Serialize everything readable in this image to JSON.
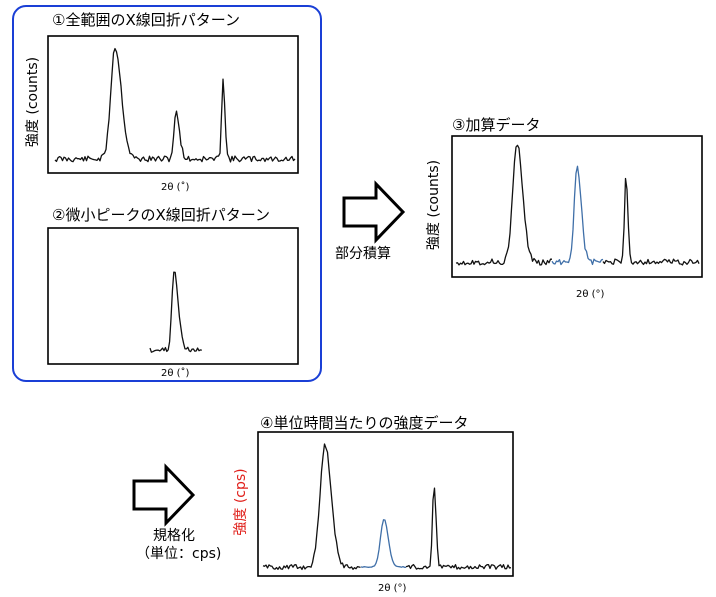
{
  "panel1": {
    "title": "①全範囲のX線回折パターン",
    "ylabel": "強度 (counts)",
    "xlabel": "2θ (˚)"
  },
  "panel2": {
    "title": "②微小ピークのX線回折パターン",
    "xlabel": "2θ (˚)"
  },
  "panel3": {
    "title": "③加算データ",
    "ylabel": "強度 (counts)",
    "xlabel": "2θ (°)"
  },
  "panel4": {
    "title": "④単位時間当たりの強度データ",
    "ylabel": "強度 (cps)",
    "xlabel": "2θ (°)"
  },
  "step1": {
    "label": "部分積算"
  },
  "step2": {
    "line1": "規格化",
    "line2": "（単位：cps)"
  },
  "colors": {
    "frame": "#1a3fd6",
    "highlight": "#3f6fa8",
    "red_label": "#e0201b",
    "trace": "#111111"
  }
}
